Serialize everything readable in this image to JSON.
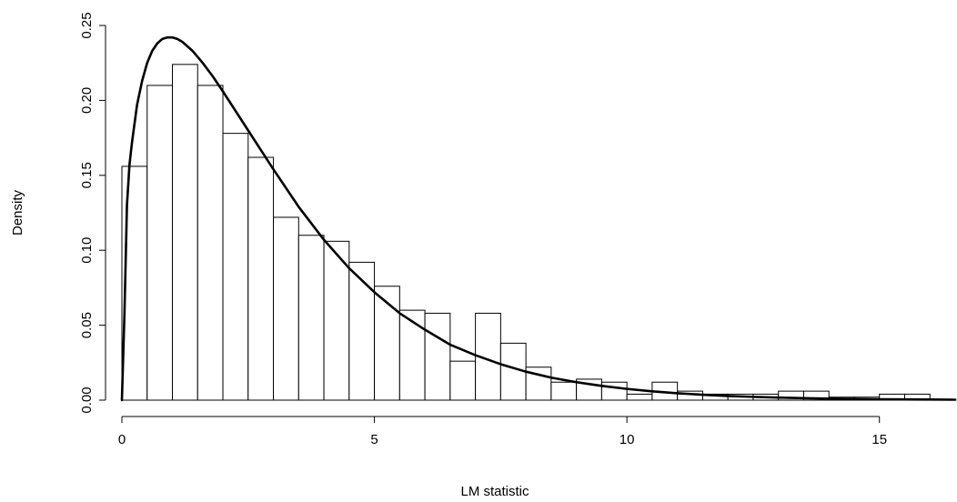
{
  "chart_data": {
    "type": "histogram",
    "title": "",
    "xlabel": "LM statistic",
    "ylabel": "Density",
    "xlim": [
      0,
      16.5
    ],
    "ylim": [
      0,
      0.25
    ],
    "x_ticks": [
      0,
      5,
      10,
      15
    ],
    "y_ticks": [
      0.0,
      0.05,
      0.1,
      0.15,
      0.2,
      0.25
    ],
    "x_tick_labels": [
      "0",
      "5",
      "10",
      "15"
    ],
    "y_tick_labels": [
      "0.00",
      "0.05",
      "0.10",
      "0.15",
      "0.20",
      "0.25"
    ],
    "grid": false,
    "bin_width": 0.5,
    "bins": [
      {
        "x0": 0.0,
        "x1": 0.5,
        "density": 0.156
      },
      {
        "x0": 0.5,
        "x1": 1.0,
        "density": 0.21
      },
      {
        "x0": 1.0,
        "x1": 1.5,
        "density": 0.224
      },
      {
        "x0": 1.5,
        "x1": 2.0,
        "density": 0.21
      },
      {
        "x0": 2.0,
        "x1": 2.5,
        "density": 0.178
      },
      {
        "x0": 2.5,
        "x1": 3.0,
        "density": 0.162
      },
      {
        "x0": 3.0,
        "x1": 3.5,
        "density": 0.122
      },
      {
        "x0": 3.5,
        "x1": 4.0,
        "density": 0.11
      },
      {
        "x0": 4.0,
        "x1": 4.5,
        "density": 0.106
      },
      {
        "x0": 4.5,
        "x1": 5.0,
        "density": 0.092
      },
      {
        "x0": 5.0,
        "x1": 5.5,
        "density": 0.076
      },
      {
        "x0": 5.5,
        "x1": 6.0,
        "density": 0.06
      },
      {
        "x0": 6.0,
        "x1": 6.5,
        "density": 0.058
      },
      {
        "x0": 6.5,
        "x1": 7.0,
        "density": 0.026
      },
      {
        "x0": 7.0,
        "x1": 7.5,
        "density": 0.058
      },
      {
        "x0": 7.5,
        "x1": 8.0,
        "density": 0.038
      },
      {
        "x0": 8.0,
        "x1": 8.5,
        "density": 0.022
      },
      {
        "x0": 8.5,
        "x1": 9.0,
        "density": 0.012
      },
      {
        "x0": 9.0,
        "x1": 9.5,
        "density": 0.014
      },
      {
        "x0": 9.5,
        "x1": 10.0,
        "density": 0.012
      },
      {
        "x0": 10.0,
        "x1": 10.5,
        "density": 0.004
      },
      {
        "x0": 10.5,
        "x1": 11.0,
        "density": 0.012
      },
      {
        "x0": 11.0,
        "x1": 11.5,
        "density": 0.006
      },
      {
        "x0": 11.5,
        "x1": 12.0,
        "density": 0.004
      },
      {
        "x0": 12.0,
        "x1": 12.5,
        "density": 0.004
      },
      {
        "x0": 12.5,
        "x1": 13.0,
        "density": 0.004
      },
      {
        "x0": 13.0,
        "x1": 13.5,
        "density": 0.006
      },
      {
        "x0": 13.5,
        "x1": 14.0,
        "density": 0.006
      },
      {
        "x0": 14.0,
        "x1": 14.5,
        "density": 0.002
      },
      {
        "x0": 14.5,
        "x1": 15.0,
        "density": 0.002
      },
      {
        "x0": 15.0,
        "x1": 15.5,
        "density": 0.004
      },
      {
        "x0": 15.5,
        "x1": 16.0,
        "density": 0.004
      }
    ],
    "curve": {
      "x": [
        0.0,
        0.05,
        0.1,
        0.15,
        0.2,
        0.3,
        0.4,
        0.5,
        0.6,
        0.7,
        0.8,
        0.9,
        1.0,
        1.1,
        1.2,
        1.4,
        1.6,
        1.8,
        2.0,
        2.25,
        2.5,
        2.75,
        3.0,
        3.5,
        4.0,
        4.5,
        5.0,
        5.5,
        6.0,
        6.5,
        7.0,
        7.5,
        8.0,
        8.5,
        9.0,
        9.5,
        10.0,
        10.5,
        11.0,
        11.5,
        12.0,
        12.5,
        13.0,
        13.5,
        14.0,
        14.5,
        15.0,
        15.5,
        16.0,
        16.5
      ],
      "y": [
        0.0,
        0.057,
        0.13,
        0.157,
        0.172,
        0.197,
        0.213,
        0.225,
        0.233,
        0.238,
        0.241,
        0.242,
        0.242,
        0.241,
        0.239,
        0.233,
        0.225,
        0.216,
        0.206,
        0.193,
        0.18,
        0.167,
        0.154,
        0.129,
        0.107,
        0.088,
        0.072,
        0.058,
        0.047,
        0.037,
        0.03,
        0.024,
        0.019,
        0.015,
        0.012,
        0.0095,
        0.0075,
        0.0059,
        0.0046,
        0.0036,
        0.0028,
        0.0022,
        0.0017,
        0.0013,
        0.001,
        0.0008,
        0.0006,
        0.0005,
        0.0004,
        0.0003
      ]
    }
  }
}
